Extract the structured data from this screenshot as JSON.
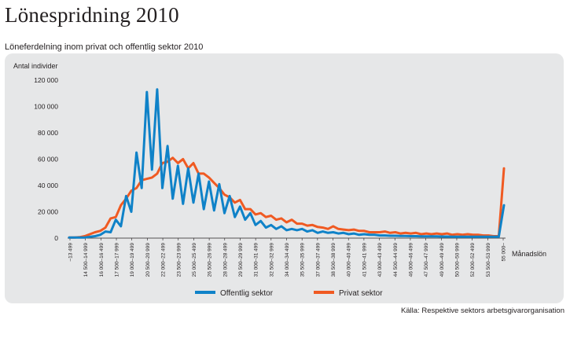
{
  "page": {
    "title": "Lönespridning 2010",
    "subtitle": "Löneferdelning inom privat och offentlig sektor 2010",
    "source": "Källa: Respektive sektors arbetsgivarorganisation"
  },
  "chart_data": {
    "type": "line",
    "ylabel": "Antal individer",
    "xlabel": "Månadslön",
    "ylim": [
      0,
      120000
    ],
    "yticks": [
      "0",
      "20 000",
      "40 000",
      "60 000",
      "80 000",
      "100 000",
      "120 000"
    ],
    "grid": false,
    "legend_position": "bottom-center",
    "x_tick_labels": [
      "–13 499",
      "14 500–14 999",
      "16 000–16 499",
      "17 500–17 999",
      "19 000–19 499",
      "20 500–20 999",
      "22 000–22 499",
      "23 500–23 999",
      "25 000–25 499",
      "26 500–26 999",
      "28 000–28 499",
      "29 500–29 999",
      "31 000–31 499",
      "32 500–32 999",
      "34 000–34 499",
      "35 500–35 999",
      "37 000–37 499",
      "38 500–38 999",
      "40 000–40 499",
      "41 500–41 999",
      "43 000–43 499",
      "44 500–44 999",
      "46 000–46 499",
      "47 500–47 999",
      "49 000–49 499",
      "50 500–50 999",
      "52 000–52 499",
      "53 500–53 999",
      "55 000–"
    ],
    "series": [
      {
        "name": "Offentlig sektor",
        "color": "#0f82c8",
        "values": [
          500,
          500,
          500,
          500,
          1000,
          1500,
          2500,
          5000,
          4500,
          14000,
          9000,
          32000,
          20000,
          65000,
          38000,
          111000,
          52000,
          113000,
          38000,
          70000,
          30000,
          55000,
          26000,
          53000,
          27000,
          49000,
          22000,
          43000,
          21000,
          41000,
          19000,
          32000,
          16000,
          24000,
          14000,
          19000,
          10000,
          13000,
          8000,
          10000,
          7000,
          9000,
          6000,
          7000,
          6000,
          7000,
          5000,
          6000,
          4000,
          5000,
          4000,
          4500,
          3500,
          4000,
          3000,
          3500,
          2500,
          3000,
          2500,
          2500,
          2000,
          2000,
          1800,
          1800,
          1600,
          1600,
          1500,
          1500,
          1400,
          1400,
          1300,
          1300,
          1200,
          1200,
          1100,
          1100,
          1000,
          1000,
          1000,
          1000,
          1000,
          1000,
          1000,
          1000,
          25000
        ]
      },
      {
        "name": "Privat sektor",
        "color": "#f05a22",
        "values": [
          500,
          500,
          700,
          1500,
          3000,
          4500,
          5500,
          8000,
          15000,
          16000,
          25000,
          30000,
          36000,
          38000,
          44000,
          45000,
          46000,
          49000,
          57000,
          58000,
          61000,
          57000,
          60000,
          53000,
          57000,
          49000,
          49000,
          46000,
          42000,
          38000,
          33000,
          31000,
          27000,
          29000,
          22000,
          22000,
          18000,
          19000,
          16000,
          17000,
          14000,
          15000,
          12000,
          14000,
          11000,
          11000,
          9500,
          10000,
          8500,
          8000,
          7000,
          9000,
          7000,
          6500,
          6000,
          6500,
          5500,
          5500,
          4500,
          4500,
          4500,
          5000,
          4000,
          4500,
          3500,
          4000,
          3500,
          4000,
          3000,
          3500,
          3000,
          3500,
          3000,
          3500,
          2500,
          3000,
          2500,
          3000,
          2500,
          2500,
          2000,
          2000,
          1500,
          1500,
          53000
        ]
      }
    ]
  }
}
